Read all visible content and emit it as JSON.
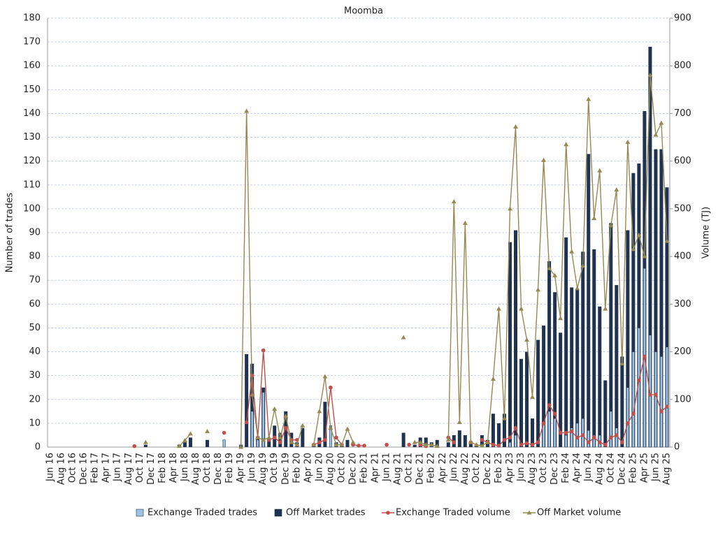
{
  "chart_data": {
    "type": "bar-line",
    "title": "Moomba",
    "y_label": "Number of trades",
    "y2_label": "Volume (TJ)",
    "ylim": [
      0,
      180
    ],
    "yticks": [
      0,
      10,
      20,
      30,
      40,
      50,
      60,
      70,
      80,
      90,
      100,
      110,
      120,
      130,
      140,
      150,
      160,
      170,
      180
    ],
    "y2lim": [
      0,
      900
    ],
    "y2ticks": [
      0,
      100,
      200,
      300,
      400,
      500,
      600,
      700,
      800,
      900
    ],
    "grid": true,
    "legend": "bottom",
    "categories": [
      "Jun 16",
      null,
      "Aug 16",
      null,
      "Oct 16",
      null,
      "Dec 16",
      null,
      "Feb 17",
      null,
      "Apr 17",
      null,
      "Jun 17",
      null,
      "Aug 17",
      null,
      "Oct 17",
      null,
      "Dec 17",
      null,
      "Feb 18",
      null,
      "Apr 18",
      null,
      "Jun 18",
      null,
      "Aug 18",
      null,
      "Oct 18",
      null,
      "Dec 18",
      null,
      "Feb 19",
      null,
      "Apr 19",
      null,
      "Jun 19",
      null,
      "Aug 19",
      null,
      "Oct 19",
      null,
      "Dec 19",
      null,
      "Feb 20",
      null,
      "Apr 20",
      null,
      "Jun 20",
      null,
      "Aug 20",
      null,
      "Oct 20",
      null,
      "Dec 20",
      null,
      "Feb 21",
      null,
      "Apr 21",
      null,
      "Jun 21",
      null,
      "Aug 21",
      null,
      "Oct 21",
      null,
      "Dec 21",
      null,
      "Feb 22",
      null,
      "Apr 22",
      null,
      "Jun 22",
      null,
      "Aug 22",
      null,
      "Oct 22",
      null,
      "Dec 22",
      null,
      "Feb 23",
      null,
      "Apr 23",
      null,
      "Jun 23",
      null,
      "Aug 23",
      null,
      "Oct 23",
      null,
      "Dec 23",
      null,
      "Feb 24",
      null,
      "Apr 24",
      null,
      "Jun 24",
      null,
      "Aug 24",
      null,
      "Oct 24",
      null,
      "Dec 24",
      null,
      "Feb 25",
      null,
      "Apr 25",
      null,
      "Jun 25",
      null,
      "Aug 25"
    ],
    "series": [
      {
        "name": "Exchange Traded trades",
        "kind": "bar",
        "color": "#9dc3e6",
        "values": [
          0,
          0,
          0,
          0,
          0,
          0,
          0,
          0,
          0,
          0,
          0,
          0,
          0,
          0,
          0,
          0,
          0,
          0,
          0,
          0,
          0,
          0,
          0,
          0,
          0,
          0,
          0,
          0,
          0,
          0,
          0,
          3,
          0,
          0,
          0,
          0,
          15,
          3,
          23,
          0,
          0,
          0,
          0,
          0,
          0,
          0,
          0,
          0,
          0,
          0,
          9,
          0,
          0,
          0,
          0,
          0,
          0,
          0,
          0,
          0,
          0,
          0,
          0,
          0,
          0,
          0,
          0,
          0,
          0,
          0,
          0,
          0,
          0,
          0,
          0,
          0,
          0,
          0,
          0,
          0,
          0,
          0,
          2,
          5,
          0,
          0,
          0,
          0,
          10,
          15,
          12,
          0,
          5,
          8,
          10,
          12,
          7,
          5,
          5,
          0,
          15,
          8,
          0,
          25,
          40,
          50,
          75,
          47,
          40,
          38,
          42
        ]
      },
      {
        "name": "Off Market trades",
        "kind": "bar",
        "color": "#1f3350",
        "values": [
          0,
          0,
          0,
          0,
          0,
          0,
          0,
          0,
          0,
          0,
          0,
          0,
          0,
          0,
          0,
          0,
          0,
          1,
          0,
          0,
          0,
          0,
          0,
          1,
          2,
          4,
          0,
          0,
          3,
          0,
          0,
          0,
          0,
          0,
          1,
          39,
          35,
          4,
          25,
          3,
          9,
          6,
          15,
          6,
          2,
          8,
          0,
          1,
          4,
          19,
          0,
          2,
          1,
          3,
          0,
          0,
          0,
          0,
          0,
          0,
          0,
          0,
          0,
          6,
          0,
          1,
          4,
          4,
          2,
          3,
          0,
          2,
          5,
          7,
          5,
          2,
          1,
          5,
          3,
          14,
          10,
          14,
          86,
          91,
          37,
          40,
          12,
          45,
          51,
          78,
          65,
          48,
          88,
          67,
          66,
          82,
          123,
          83,
          59,
          28,
          94,
          68,
          38,
          91,
          115,
          119,
          141,
          168,
          125,
          125,
          109
        ]
      },
      {
        "name": "Exchange Traded volume",
        "kind": "line",
        "marker": "circle",
        "axis": "y2",
        "color": "#c0504d",
        "values": [
          null,
          null,
          null,
          null,
          null,
          null,
          null,
          null,
          null,
          null,
          null,
          null,
          null,
          null,
          null,
          2,
          null,
          null,
          null,
          null,
          null,
          null,
          null,
          null,
          null,
          null,
          null,
          null,
          null,
          null,
          null,
          30,
          null,
          null,
          null,
          52,
          150,
          20,
          203,
          15,
          20,
          10,
          40,
          15,
          15,
          null,
          null,
          5,
          10,
          15,
          125,
          20,
          5,
          null,
          5,
          3,
          3,
          null,
          null,
          null,
          5,
          null,
          null,
          null,
          5,
          null,
          5,
          2,
          null,
          null,
          null,
          20,
          10,
          null,
          null,
          10,
          null,
          15,
          10,
          5,
          3,
          15,
          20,
          40,
          5,
          8,
          5,
          10,
          50,
          88,
          70,
          30,
          30,
          33,
          20,
          25,
          10,
          20,
          10,
          5,
          20,
          25,
          10,
          50,
          70,
          140,
          190,
          110,
          110,
          75,
          85
        ]
      },
      {
        "name": "Off Market volume",
        "kind": "line",
        "marker": "triangle",
        "axis": "y2",
        "color": "#948a54",
        "values": [
          null,
          null,
          null,
          null,
          null,
          null,
          null,
          null,
          null,
          null,
          null,
          null,
          null,
          null,
          null,
          null,
          null,
          10,
          null,
          null,
          null,
          null,
          null,
          2,
          14,
          28,
          null,
          null,
          33,
          null,
          null,
          null,
          null,
          null,
          0,
          705,
          110,
          20,
          15,
          20,
          80,
          20,
          65,
          10,
          5,
          45,
          null,
          5,
          75,
          148,
          40,
          5,
          5,
          38,
          10,
          null,
          null,
          null,
          null,
          null,
          null,
          null,
          null,
          230,
          null,
          10,
          10,
          5,
          5,
          2,
          null,
          15,
          515,
          52,
          470,
          10,
          5,
          3,
          10,
          143,
          290,
          60,
          500,
          672,
          290,
          225,
          105,
          330,
          602,
          375,
          360,
          270,
          635,
          410,
          333,
          380,
          730,
          480,
          580,
          290,
          465,
          540,
          175,
          640,
          415,
          445,
          400,
          780,
          655,
          680,
          432
        ]
      }
    ]
  }
}
